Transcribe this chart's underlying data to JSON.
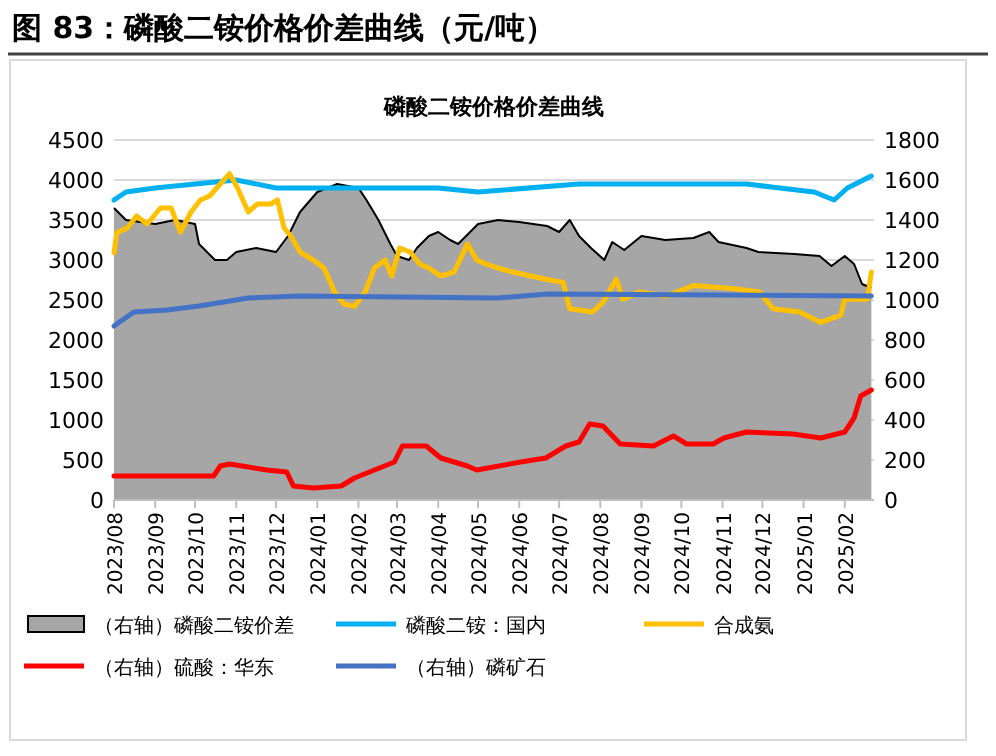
{
  "chart_data": {
    "type": "line",
    "title": "图 83：磷酸二铵价格价差曲线（元/吨）",
    "subtitle": "磷酸二铵价格价差曲线",
    "xlim": [
      "2023-08-01",
      "2025-02-23"
    ],
    "xticks": [
      {
        "value": "2023-08",
        "label": "2023/08"
      },
      {
        "value": "2023-09",
        "label": "2023/09"
      },
      {
        "value": "2023-10",
        "label": "2023/10"
      },
      {
        "value": "2023-11",
        "label": "2023/11"
      },
      {
        "value": "2023-12",
        "label": "2023/12"
      },
      {
        "value": "2024-01",
        "label": "2024/01"
      },
      {
        "value": "2024-02",
        "label": "2024/02"
      },
      {
        "value": "2024-03",
        "label": "2024/03"
      },
      {
        "value": "2024-04",
        "label": "2024/04"
      },
      {
        "value": "2024-05",
        "label": "2024/05"
      },
      {
        "value": "2024-06",
        "label": "2024/06"
      },
      {
        "value": "2024-07",
        "label": "2024/07"
      },
      {
        "value": "2024-08",
        "label": "2024/08"
      },
      {
        "value": "2024-09",
        "label": "2024/09"
      },
      {
        "value": "2024-10",
        "label": "2024/10"
      },
      {
        "value": "2024-11",
        "label": "2024/11"
      },
      {
        "value": "2024-12",
        "label": "2024/12"
      },
      {
        "value": "2025-01",
        "label": "2025/01"
      },
      {
        "value": "2025-02",
        "label": "2025/02"
      }
    ],
    "ylim": [
      0,
      4500
    ],
    "yticks": [
      0,
      500,
      1000,
      1500,
      2000,
      2500,
      3000,
      3500,
      4000,
      4500
    ],
    "y2lim": [
      0,
      1800
    ],
    "y2ticks": [
      0,
      200,
      400,
      600,
      800,
      1000,
      1200,
      1400,
      1600,
      1800
    ],
    "grid": "y",
    "legend": "bottom",
    "series": [
      {
        "name": "（右轴）磷酸二铵价差",
        "type": "area",
        "axis": "y2",
        "color": "#a6a6a6",
        "x": [
          "2023-08-01",
          "2023-08-10",
          "2023-09-01",
          "2023-09-16",
          "2023-10-01",
          "2023-10-04",
          "2023-10-16",
          "2023-10-25",
          "2023-11-01",
          "2023-11-16",
          "2023-12-01",
          "2023-12-10",
          "2023-12-19",
          "2024-01-01",
          "2024-01-16",
          "2024-02-01",
          "2024-02-07",
          "2024-02-16",
          "2024-02-25",
          "2024-03-01",
          "2024-03-10",
          "2024-03-16",
          "2024-03-25",
          "2024-04-01",
          "2024-04-10",
          "2024-04-16",
          "2024-04-25",
          "2024-05-01",
          "2024-05-16",
          "2024-06-01",
          "2024-06-22",
          "2024-07-01",
          "2024-07-09",
          "2024-07-16",
          "2024-07-25",
          "2024-08-04",
          "2024-08-10",
          "2024-08-19",
          "2024-09-01",
          "2024-09-19",
          "2024-10-10",
          "2024-10-22",
          "2024-10-29",
          "2024-11-19",
          "2024-11-28",
          "2024-12-25",
          "2025-01-13",
          "2025-01-22",
          "2025-02-01",
          "2025-02-08",
          "2025-02-14",
          "2025-02-21"
        ],
        "values": [
          1460,
          1400,
          1380,
          1400,
          1380,
          1280,
          1200,
          1200,
          1240,
          1260,
          1240,
          1320,
          1440,
          1540,
          1580,
          1560,
          1500,
          1400,
          1280,
          1220,
          1200,
          1260,
          1320,
          1340,
          1300,
          1280,
          1340,
          1380,
          1400,
          1390,
          1370,
          1340,
          1400,
          1320,
          1260,
          1200,
          1290,
          1250,
          1320,
          1300,
          1310,
          1340,
          1290,
          1260,
          1240,
          1230,
          1220,
          1170,
          1220,
          1180,
          1080,
          1060
        ]
      },
      {
        "name": "磷酸二铵：国内",
        "axis": "y",
        "color": "#00b0f0",
        "x": [
          "2023-08-01",
          "2023-08-10",
          "2023-09-01",
          "2023-10-01",
          "2023-11-01",
          "2023-12-01",
          "2024-01-01",
          "2024-02-16",
          "2024-04-01",
          "2024-05-01",
          "2024-07-16",
          "2024-09-30",
          "2024-11-19",
          "2024-12-14",
          "2025-01-09",
          "2025-01-24",
          "2025-02-03",
          "2025-02-21"
        ],
        "values": [
          3750,
          3850,
          3900,
          3950,
          4000,
          3900,
          3900,
          3900,
          3900,
          3850,
          3950,
          3950,
          3950,
          3900,
          3850,
          3750,
          3900,
          4050
        ]
      },
      {
        "name": "合成氨",
        "axis": "y",
        "color": "#ffc000",
        "x": [
          "2023-08-01",
          "2023-08-03",
          "2023-08-11",
          "2023-08-18",
          "2023-08-26",
          "2023-09-05",
          "2023-09-13",
          "2023-09-20",
          "2023-09-28",
          "2023-10-05",
          "2023-10-12",
          "2023-10-20",
          "2023-10-27",
          "2023-11-02",
          "2023-11-10",
          "2023-11-17",
          "2023-11-27",
          "2023-12-02",
          "2023-12-07",
          "2023-12-12",
          "2023-12-19",
          "2023-12-29",
          "2024-01-06",
          "2024-01-14",
          "2024-01-21",
          "2024-01-29",
          "2024-02-06",
          "2024-02-13",
          "2024-02-21",
          "2024-02-26",
          "2024-03-03",
          "2024-03-11",
          "2024-03-18",
          "2024-03-25",
          "2024-04-03",
          "2024-04-13",
          "2024-04-23",
          "2024-04-30",
          "2024-05-07",
          "2024-05-16",
          "2024-05-27",
          "2024-06-21",
          "2024-07-04",
          "2024-07-09",
          "2024-07-26",
          "2024-08-03",
          "2024-08-13",
          "2024-08-18",
          "2024-08-30",
          "2024-09-20",
          "2024-10-10",
          "2024-11-10",
          "2024-11-29",
          "2024-12-09",
          "2024-12-29",
          "2025-01-14",
          "2025-01-29",
          "2025-02-01",
          "2025-02-18",
          "2025-02-21"
        ],
        "values": [
          3090,
          3340,
          3400,
          3550,
          3450,
          3650,
          3650,
          3350,
          3600,
          3750,
          3800,
          3950,
          4080,
          3900,
          3600,
          3700,
          3700,
          3750,
          3400,
          3300,
          3100,
          3000,
          2900,
          2600,
          2450,
          2420,
          2600,
          2900,
          3000,
          2800,
          3150,
          3100,
          2950,
          2900,
          2800,
          2850,
          3200,
          3000,
          2950,
          2900,
          2850,
          2760,
          2720,
          2390,
          2350,
          2470,
          2760,
          2510,
          2600,
          2550,
          2680,
          2640,
          2600,
          2390,
          2350,
          2220,
          2310,
          2510,
          2510,
          2850
        ]
      },
      {
        "name": "（右轴）硫酸：华东",
        "axis": "y2",
        "color": "#ff0000",
        "x": [
          "2023-08-01",
          "2023-10-15",
          "2023-10-20",
          "2023-10-27",
          "2023-11-24",
          "2023-12-09",
          "2023-12-14",
          "2023-12-29",
          "2024-01-19",
          "2024-01-29",
          "2024-02-13",
          "2024-02-28",
          "2024-03-05",
          "2024-03-23",
          "2024-04-03",
          "2024-04-23",
          "2024-04-30",
          "2024-06-02",
          "2024-06-21",
          "2024-07-06",
          "2024-07-16",
          "2024-07-24",
          "2024-08-03",
          "2024-08-16",
          "2024-09-10",
          "2024-09-25",
          "2024-10-05",
          "2024-10-25",
          "2024-11-02",
          "2024-11-19",
          "2024-12-24",
          "2025-01-14",
          "2025-02-01",
          "2025-02-08",
          "2025-02-13",
          "2025-02-21"
        ],
        "values": [
          120,
          120,
          170,
          180,
          150,
          140,
          70,
          60,
          70,
          110,
          150,
          190,
          270,
          270,
          210,
          170,
          150,
          190,
          210,
          270,
          290,
          380,
          370,
          280,
          270,
          320,
          280,
          280,
          310,
          340,
          330,
          310,
          340,
          410,
          520,
          550
        ]
      },
      {
        "name": "（右轴）磷矿石",
        "axis": "y2",
        "color": "#4472c4",
        "x": [
          "2023-08-01",
          "2023-08-16",
          "2023-09-10",
          "2023-10-04",
          "2023-11-10",
          "2023-12-19",
          "2024-05-16",
          "2024-06-22",
          "2025-02-21"
        ],
        "values": [
          870,
          940,
          950,
          970,
          1010,
          1020,
          1010,
          1030,
          1020
        ]
      }
    ]
  }
}
